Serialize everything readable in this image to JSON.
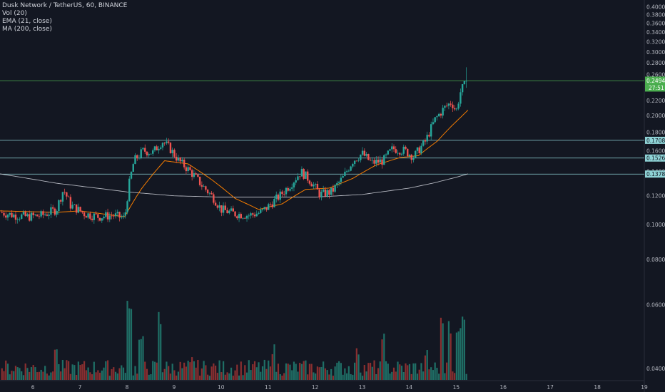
{
  "legend": {
    "title": "Dusk Network / TetherUS, 60, BINANCE",
    "vol": "Vol (20)",
    "ema": "EMA (21, close)",
    "ma": "MA (200, close)"
  },
  "colors": {
    "background": "#131722",
    "up": "#26a69a",
    "down": "#ef5350",
    "vol_up": "#1f6f66",
    "vol_down": "#8a2f30",
    "ema": "#f57c00",
    "ma": "#d1d4dc",
    "hline": "#8fd3d6",
    "price_line": "#4caf50",
    "text": "#d1d4dc",
    "axis_text": "#b2b5be"
  },
  "chart_data": {
    "type": "candlestick",
    "symbol": "Dusk Network / TetherUS",
    "interval": "60",
    "exchange": "BINANCE",
    "x_ticks": [
      "6",
      "7",
      "8",
      "9",
      "10",
      "11",
      "12",
      "13",
      "14",
      "15",
      "16",
      "17",
      "18",
      "19"
    ],
    "x_range_days": [
      5.3,
      19.0
    ],
    "y_ticks": [
      "0.4000",
      "0.3800",
      "0.3600",
      "0.3400",
      "0.3200",
      "0.3000",
      "0.2800",
      "0.2600",
      "0.2400",
      "0.2200",
      "0.2000",
      "0.1800",
      "0.1600",
      "0.1400",
      "0.1200",
      "0.1000",
      "0.0800",
      "0.0600",
      "0.0400"
    ],
    "ylim": [
      0.037,
      0.408
    ],
    "price_anchors": [
      [
        5.3,
        0.108
      ],
      [
        5.6,
        0.106
      ],
      [
        5.9,
        0.105
      ],
      [
        6.2,
        0.106
      ],
      [
        6.5,
        0.11
      ],
      [
        6.65,
        0.125
      ],
      [
        6.8,
        0.113
      ],
      [
        7.1,
        0.107
      ],
      [
        7.4,
        0.105
      ],
      [
        7.7,
        0.106
      ],
      [
        7.95,
        0.104
      ],
      [
        8.05,
        0.13
      ],
      [
        8.15,
        0.15
      ],
      [
        8.35,
        0.16
      ],
      [
        8.55,
        0.158
      ],
      [
        8.75,
        0.17
      ],
      [
        8.9,
        0.163
      ],
      [
        9.1,
        0.15
      ],
      [
        9.35,
        0.14
      ],
      [
        9.6,
        0.128
      ],
      [
        9.85,
        0.118
      ],
      [
        10.0,
        0.11
      ],
      [
        10.3,
        0.107
      ],
      [
        10.6,
        0.106
      ],
      [
        10.85,
        0.108
      ],
      [
        11.0,
        0.112
      ],
      [
        11.25,
        0.12
      ],
      [
        11.5,
        0.13
      ],
      [
        11.7,
        0.14
      ],
      [
        11.9,
        0.132
      ],
      [
        12.1,
        0.121
      ],
      [
        12.35,
        0.123
      ],
      [
        12.6,
        0.135
      ],
      [
        12.8,
        0.15
      ],
      [
        13.0,
        0.157
      ],
      [
        13.2,
        0.148
      ],
      [
        13.45,
        0.15
      ],
      [
        13.65,
        0.162
      ],
      [
        13.9,
        0.16
      ],
      [
        14.1,
        0.154
      ],
      [
        14.35,
        0.17
      ],
      [
        14.55,
        0.195
      ],
      [
        14.75,
        0.21
      ],
      [
        14.9,
        0.218
      ],
      [
        15.0,
        0.205
      ],
      [
        15.1,
        0.235
      ],
      [
        15.25,
        0.249
      ]
    ],
    "ema_anchors": [
      [
        5.3,
        0.109
      ],
      [
        6.5,
        0.108
      ],
      [
        7.0,
        0.109
      ],
      [
        7.95,
        0.105
      ],
      [
        8.3,
        0.125
      ],
      [
        8.8,
        0.15
      ],
      [
        9.3,
        0.147
      ],
      [
        9.8,
        0.133
      ],
      [
        10.3,
        0.118
      ],
      [
        10.8,
        0.11
      ],
      [
        11.3,
        0.114
      ],
      [
        11.8,
        0.125
      ],
      [
        12.3,
        0.126
      ],
      [
        12.8,
        0.134
      ],
      [
        13.3,
        0.146
      ],
      [
        13.8,
        0.153
      ],
      [
        14.2,
        0.155
      ],
      [
        14.6,
        0.17
      ],
      [
        14.9,
        0.187
      ],
      [
        15.1,
        0.198
      ],
      [
        15.25,
        0.207
      ]
    ],
    "ma_anchors": [
      [
        5.3,
        0.138
      ],
      [
        6.5,
        0.13
      ],
      [
        8.0,
        0.123
      ],
      [
        9.0,
        0.12
      ],
      [
        10.0,
        0.119
      ],
      [
        11.0,
        0.119
      ],
      [
        12.0,
        0.119
      ],
      [
        13.0,
        0.121
      ],
      [
        14.0,
        0.126
      ],
      [
        14.5,
        0.13
      ],
      [
        15.0,
        0.135
      ],
      [
        15.25,
        0.138
      ]
    ],
    "volume_spikes": [
      [
        6.5,
        0.45
      ],
      [
        8.05,
        1.0
      ],
      [
        8.3,
        0.55
      ],
      [
        8.7,
        0.9
      ],
      [
        9.4,
        0.3
      ],
      [
        11.1,
        0.45
      ],
      [
        12.9,
        0.4
      ],
      [
        13.45,
        0.6
      ],
      [
        14.35,
        0.4
      ],
      [
        14.7,
        1.0
      ],
      [
        14.85,
        0.8
      ],
      [
        15.05,
        0.75
      ],
      [
        15.15,
        1.0
      ]
    ],
    "horizontal_lines": [
      0.1708,
      0.1526,
      0.1378
    ],
    "last_price": "0.2494",
    "countdown": "27:51"
  }
}
